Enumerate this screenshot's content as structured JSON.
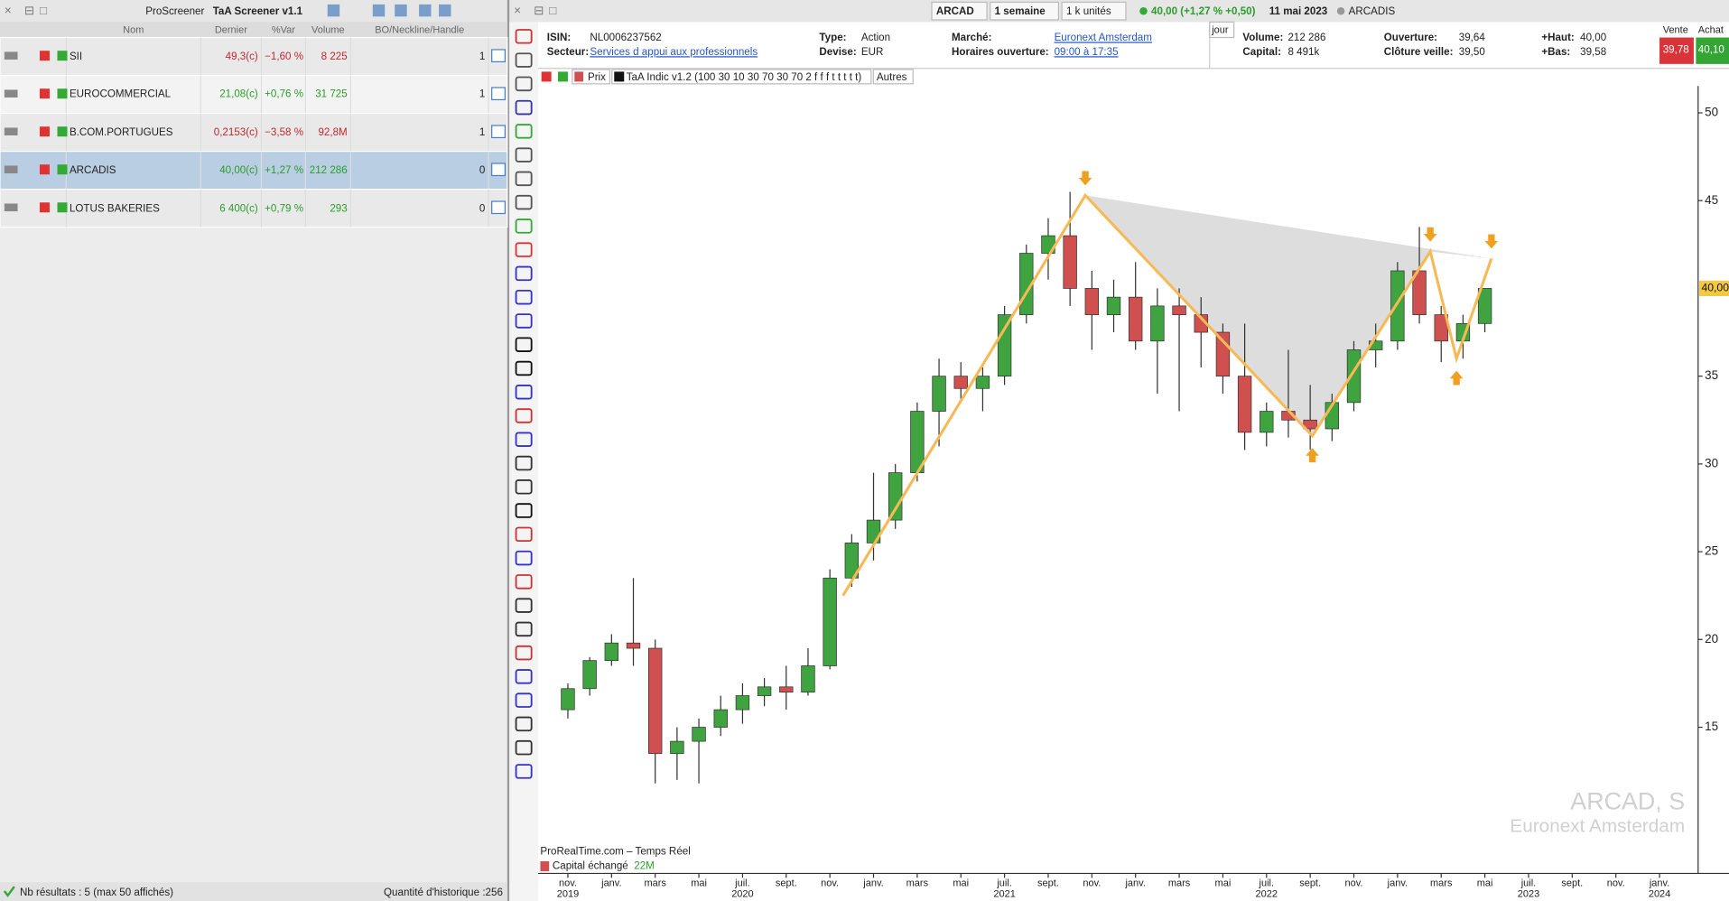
{
  "screener": {
    "tabs": [
      "ProScreener",
      "TaA Screener v1.1"
    ],
    "columns": [
      "Nom",
      "Dernier",
      "%Var",
      "Volume",
      "BO/Neckline/Handle"
    ],
    "rows": [
      [
        "SII",
        "49,3(c)",
        "−1,60 %",
        "8 225",
        "1"
      ],
      [
        "EUROCOMMERCIAL",
        "21,08(c)",
        "+0,76 %",
        "31 725",
        "1"
      ],
      [
        "B.COM.PORTUGUES",
        "0,2153(c)",
        "−3,58 %",
        "92,8M",
        "1"
      ],
      [
        "ARCADIS",
        "40,00(c)",
        "+1,27 %",
        "212 286",
        "0"
      ],
      [
        "LOTUS BAKERIES",
        "6 400(c)",
        "+0,79 %",
        "293",
        "0"
      ]
    ],
    "selected": 3,
    "status": "Nb résultats : 5 (max 50 affichés)",
    "history": "Quantité d'historique :256"
  },
  "toolbar": {
    "symbol": "ARCAD",
    "period": "1 semaine",
    "units": "1 k unités",
    "quote": "40,00 (+1,27 % +0,50)",
    "date": "11 mai 2023",
    "name": "ARCADIS"
  },
  "info": {
    "fields": [
      {
        "label": "ISIN:",
        "value": "NL0006237562"
      },
      {
        "label": "Secteur:",
        "value": "Services d appui aux professionnels"
      },
      {
        "label": "Type:",
        "value": "Action"
      },
      {
        "label": "Devise:",
        "value": "EUR"
      },
      {
        "label": "Marché:",
        "value": "Euronext Amsterdam"
      },
      {
        "label": "Horaires ouverture:",
        "value": "09:00 à 17:35"
      },
      {
        "label": "Volume:",
        "value": "212 286"
      },
      {
        "label": "Capital:",
        "value": "8 491k"
      },
      {
        "label": "Ouverture:",
        "value": "39,64"
      },
      {
        "label": "Clôture veille:",
        "value": "39,50"
      },
      {
        "label": "+Haut:",
        "value": "40,00"
      },
      {
        "label": "+Bas:",
        "value": "39,58"
      }
    ],
    "tab": "jour",
    "sell_label": "Vente",
    "sell": "39,78",
    "buy_label": "Achat",
    "buy": "40,10"
  },
  "legend": {
    "indicator": "TaA Indic v1.2 (100 30 10 30 70 30 70 2 f f f t t t t t)",
    "other": "Autres",
    "source": "ProRealTime.com – Temps Réel",
    "volume": "Capital échangé",
    "volume_value": "22M"
  },
  "watermark": {
    "line1": "ARCAD, S",
    "line2": "Euronext Amsterdam"
  },
  "chart_data": {
    "type": "candlestick",
    "grid": false,
    "up_color": "#3fa33f",
    "down_color": "#d05050",
    "categories": [
      "nov.",
      null,
      "janv.",
      null,
      "mars",
      null,
      "mai",
      null,
      "juil.",
      null,
      "sept.",
      null,
      "nov.",
      null,
      "janv.",
      null,
      "mars",
      null,
      "mai",
      null,
      "juil.",
      null,
      "sept.",
      null,
      "nov.",
      null,
      "janv.",
      null,
      "mars",
      null,
      "mai",
      null,
      "juil.",
      null,
      "sept.",
      null,
      "nov.",
      null,
      "janv.",
      null,
      "mars",
      null,
      "mai",
      null,
      "juil.",
      null,
      "sept.",
      null,
      "nov.",
      null,
      "janv."
    ],
    "years": [
      "2019",
      null,
      null,
      null,
      null,
      null,
      null,
      null,
      "2020",
      null,
      null,
      null,
      null,
      null,
      null,
      null,
      null,
      null,
      null,
      null,
      "2021",
      null,
      null,
      null,
      null,
      null,
      null,
      null,
      null,
      null,
      null,
      null,
      "2022",
      null,
      null,
      null,
      null,
      null,
      null,
      null,
      null,
      null,
      null,
      null,
      "2023",
      null,
      null,
      null,
      null,
      null,
      "2024"
    ],
    "series": [
      {
        "name": "Prix",
        "open": [
          16.0,
          17.2,
          18.8,
          19.8,
          19.5,
          13.5,
          14.2,
          15.0,
          16.0,
          16.8,
          17.3,
          17.0,
          18.5,
          23.5,
          25.5,
          26.8,
          29.5,
          33.0,
          35.0,
          34.3,
          35.0,
          38.5,
          42.0,
          43.0,
          40.0,
          38.5,
          39.5,
          37.0,
          39.0,
          38.5,
          37.5,
          35.0,
          31.8,
          33.0,
          32.5,
          32.0,
          33.5,
          36.5,
          37.0,
          41.0,
          38.5,
          37.0,
          38.0,
          null,
          null,
          null,
          null,
          null,
          null,
          null,
          null
        ],
        "high": [
          17.5,
          19.0,
          20.3,
          23.5,
          20.0,
          15.0,
          15.5,
          16.8,
          17.5,
          17.8,
          18.5,
          19.5,
          24.0,
          26.0,
          29.5,
          30.0,
          33.5,
          36.0,
          35.8,
          35.5,
          39.0,
          42.5,
          44.0,
          45.5,
          41.0,
          40.5,
          41.5,
          40.0,
          40.0,
          39.5,
          38.0,
          38.0,
          33.5,
          36.5,
          34.5,
          34.0,
          37.0,
          38.0,
          41.5,
          43.5,
          39.0,
          38.5,
          40.0,
          null,
          null,
          null,
          null,
          null,
          null,
          null,
          null
        ],
        "low": [
          15.5,
          16.8,
          18.5,
          18.5,
          11.8,
          12.0,
          11.8,
          14.5,
          15.2,
          16.2,
          16.0,
          16.8,
          18.3,
          23.0,
          24.5,
          26.3,
          29.0,
          31.0,
          33.5,
          33.0,
          34.5,
          38.0,
          40.5,
          39.0,
          36.5,
          37.5,
          36.5,
          34.0,
          33.0,
          35.5,
          34.0,
          30.8,
          31.0,
          31.5,
          30.8,
          31.3,
          33.0,
          35.5,
          36.5,
          38.0,
          35.8,
          36.0,
          37.5,
          null,
          null,
          null,
          null,
          null,
          null,
          null,
          null
        ],
        "close": [
          17.2,
          18.8,
          19.8,
          19.5,
          13.5,
          14.2,
          15.0,
          16.0,
          16.8,
          17.3,
          17.0,
          18.5,
          23.5,
          25.5,
          26.8,
          29.5,
          33.0,
          35.0,
          34.3,
          35.0,
          38.5,
          42.0,
          43.0,
          40.0,
          38.5,
          39.5,
          37.0,
          39.0,
          38.5,
          37.5,
          35.0,
          31.8,
          33.0,
          32.5,
          32.0,
          33.5,
          36.5,
          37.0,
          41.0,
          38.5,
          37.0,
          38.0,
          40.0,
          null,
          null,
          null,
          null,
          null,
          null,
          null,
          null
        ]
      }
    ],
    "pattern": {
      "color": "#f7b955",
      "fill": "#d4d4d4",
      "x": [
        12.6,
        23.7,
        34.1,
        39.5,
        40.7,
        42.3
      ],
      "y": [
        22.5,
        45.3,
        31.6,
        42.1,
        36.0,
        41.7
      ]
    },
    "last_price": {
      "value": 40,
      "label": "40,00"
    },
    "ylim": [
      6.8,
      50.9
    ],
    "yticks": [
      15,
      20,
      25,
      30,
      35,
      45,
      50
    ]
  }
}
